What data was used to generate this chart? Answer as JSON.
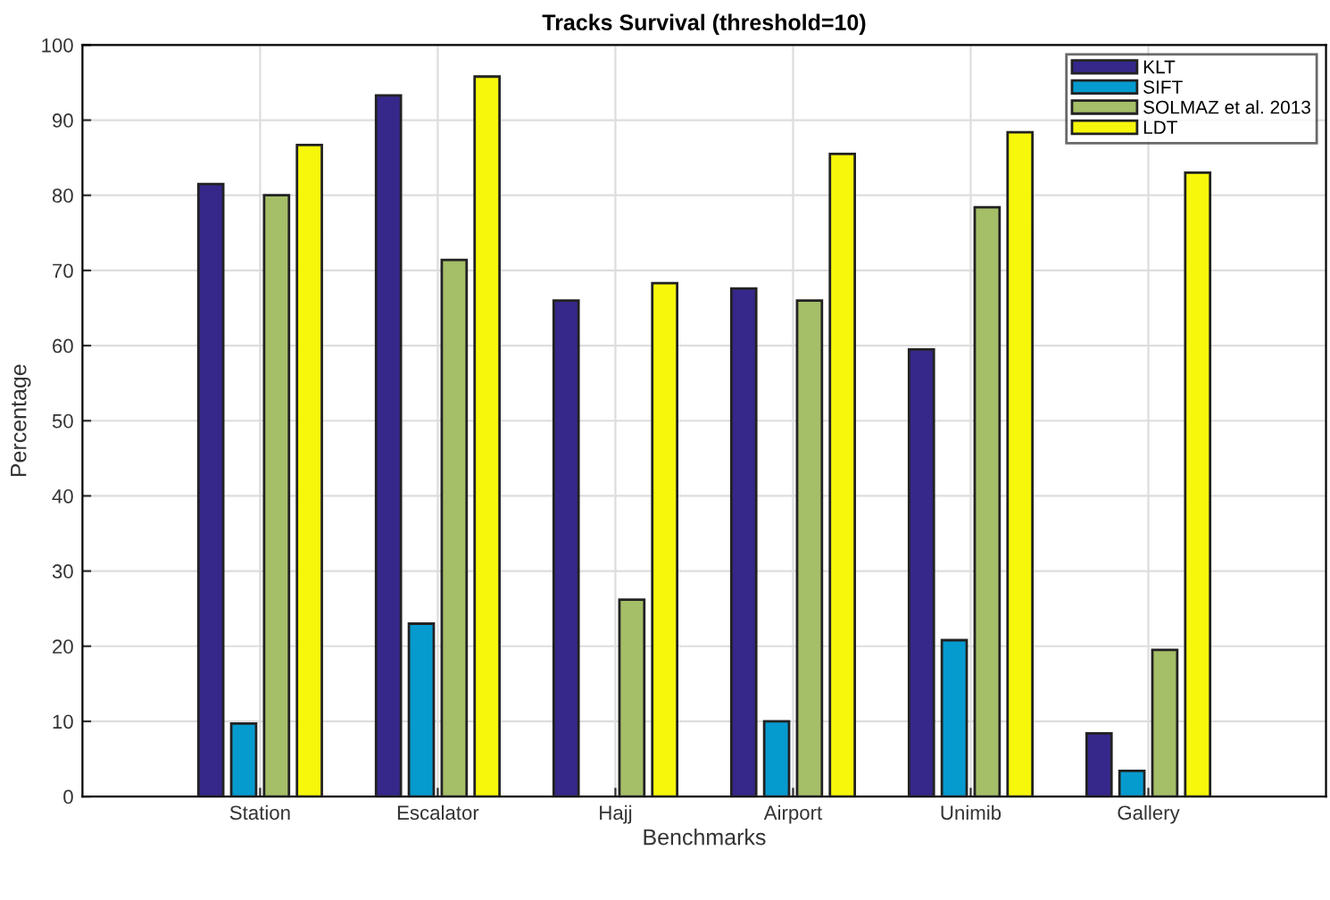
{
  "chart_data": {
    "type": "bar",
    "title": "Tracks Survival (threshold=10)",
    "xlabel": "Benchmarks",
    "ylabel": "Percentage",
    "categories": [
      "Station",
      "Escalator",
      "Hajj",
      "Airport",
      "Unimib",
      "Gallery"
    ],
    "series": [
      {
        "name": "KLT",
        "color": "#35288a",
        "values": [
          81.5,
          93.3,
          66.0,
          67.6,
          59.5,
          8.4
        ]
      },
      {
        "name": "SIFT",
        "color": "#069bcf",
        "values": [
          9.7,
          23.0,
          null,
          10.0,
          20.8,
          3.4
        ]
      },
      {
        "name": "SOLMAZ et al. 2013",
        "color": "#a5be68",
        "values": [
          80.0,
          71.4,
          26.2,
          66.0,
          78.4,
          19.5
        ]
      },
      {
        "name": "LDT",
        "color": "#f7f70c",
        "values": [
          86.7,
          95.8,
          68.3,
          85.5,
          88.4,
          83.0
        ]
      }
    ],
    "ylim": [
      0,
      100
    ],
    "yticks": [
      0,
      10,
      20,
      30,
      40,
      50,
      60,
      70,
      80,
      90,
      100
    ],
    "grid": true,
    "legend": "top right"
  }
}
